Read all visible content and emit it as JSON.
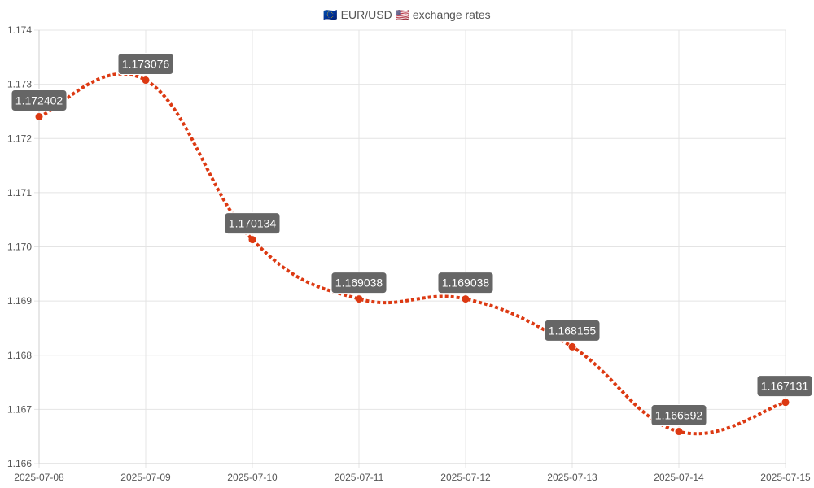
{
  "chart_data": {
    "type": "line",
    "title": "🇪🇺 EUR/USD 🇺🇸 exchange rates",
    "x": [
      "2025-07-08",
      "2025-07-09",
      "2025-07-10",
      "2025-07-11",
      "2025-07-12",
      "2025-07-13",
      "2025-07-14",
      "2025-07-15"
    ],
    "series": [
      {
        "values": [
          1.172402,
          1.173076,
          1.170134,
          1.169038,
          1.169038,
          1.168155,
          1.166592,
          1.167131
        ],
        "labels": [
          "1.172402",
          "1.173076",
          "1.170134",
          "1.169038",
          "1.169038",
          "1.168155",
          "1.166592",
          "1.167131"
        ],
        "color": "#dc3912",
        "line_style": "dotted",
        "smooth": true
      }
    ],
    "ylim": [
      1.166,
      1.174
    ],
    "yticks": [
      "1.166",
      "1.167",
      "1.168",
      "1.169",
      "1.170",
      "1.171",
      "1.172",
      "1.173",
      "1.174"
    ],
    "grid": true,
    "legend": "none",
    "label_box_color": "#666666",
    "label_text_color": "#ffffff",
    "xlabel": "",
    "ylabel": ""
  }
}
